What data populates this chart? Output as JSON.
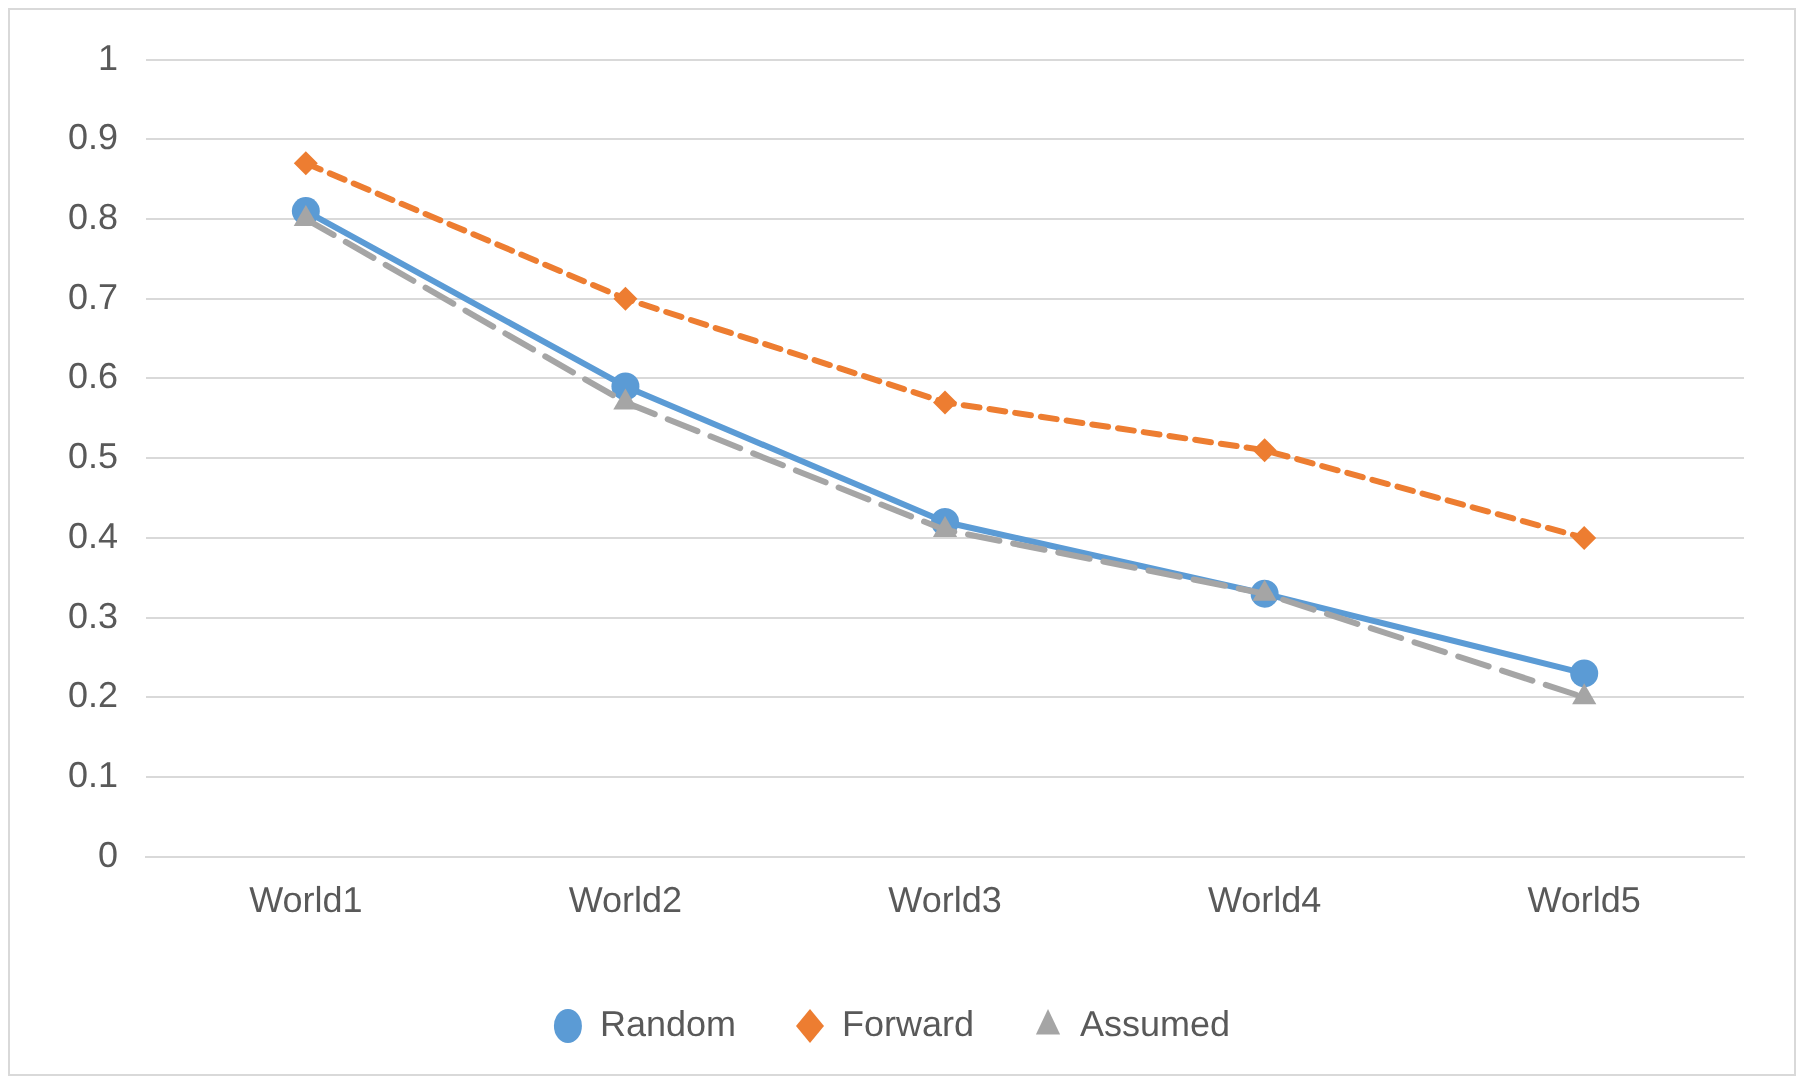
{
  "chart_data": {
    "type": "line",
    "categories": [
      "World1",
      "World2",
      "World3",
      "World4",
      "World5"
    ],
    "series": [
      {
        "name": "Random",
        "color": "#5b9bd5",
        "values": [
          0.81,
          0.59,
          0.42,
          0.33,
          0.23
        ],
        "marker": "circle",
        "line_style": "solid"
      },
      {
        "name": "Forward",
        "color": "#ed7d31",
        "values": [
          0.87,
          0.7,
          0.57,
          0.51,
          0.4
        ],
        "marker": "diamond",
        "line_style": "dashed"
      },
      {
        "name": "Assumed",
        "color": "#a5a5a5",
        "values": [
          0.8,
          0.57,
          0.41,
          0.33,
          0.2
        ],
        "marker": "triangle",
        "line_style": "dashed"
      }
    ],
    "ylim": [
      0,
      1
    ],
    "yticks": [
      0,
      0.1,
      0.2,
      0.3,
      0.4,
      0.5,
      0.6,
      0.7,
      0.8,
      0.9,
      1
    ],
    "grid": "y",
    "legend": "bottom"
  }
}
